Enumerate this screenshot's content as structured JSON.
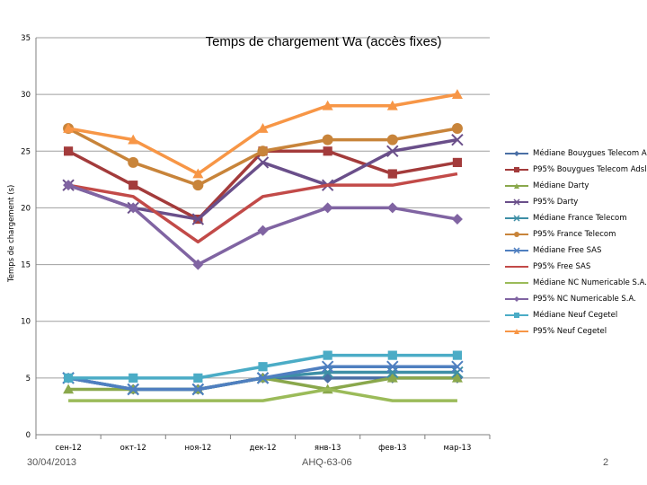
{
  "chart_data": {
    "type": "line",
    "title": "Temps de chargement Wa (accès fixes)",
    "xlabel": "",
    "ylabel": "Temps de chargement (s)",
    "ylim": [
      0,
      35
    ],
    "yticks": [
      0,
      5,
      10,
      15,
      20,
      25,
      30,
      35
    ],
    "categories": [
      "сен-12",
      "окт-12",
      "ноя-12",
      "дек-12",
      "янв-13",
      "фев-13",
      "мар-13"
    ],
    "legend_position": "right",
    "series": [
      {
        "name": "Médiane Bouygues Telecom Adsl",
        "color": "#4a6fa5",
        "marker": "diamond",
        "values": [
          5,
          4,
          4,
          5,
          5,
          5,
          5
        ]
      },
      {
        "name": "P95% Bouygues Telecom Adsl",
        "color": "#a33b3b",
        "marker": "square",
        "values": [
          25,
          22,
          19,
          25,
          25,
          23,
          24
        ]
      },
      {
        "name": "Médiane Darty",
        "color": "#8aa84c",
        "marker": "triangle",
        "values": [
          4,
          4,
          4,
          5,
          4,
          5,
          5
        ]
      },
      {
        "name": "P95% Darty",
        "color": "#6a4f8a",
        "marker": "x",
        "values": [
          22,
          20,
          19,
          24,
          22,
          25,
          26
        ]
      },
      {
        "name": "Médiane France Telecom",
        "color": "#3e8fa6",
        "marker": "x",
        "values": [
          5,
          4,
          4,
          5,
          5.5,
          5.5,
          5.5
        ]
      },
      {
        "name": "P95% France Telecom",
        "color": "#c8843a",
        "marker": "circle",
        "values": [
          27,
          24,
          22,
          25,
          26,
          26,
          27
        ]
      },
      {
        "name": "Médiane Free SAS",
        "color": "#4f7fc0",
        "marker": "x",
        "values": [
          5,
          4,
          4,
          5,
          6,
          6,
          6
        ]
      },
      {
        "name": "P95% Free SAS",
        "color": "#c24a48",
        "marker": "none",
        "values": [
          22,
          21,
          17,
          21,
          22,
          22,
          23
        ]
      },
      {
        "name": "Médiane NC Numericable S.A.",
        "color": "#9bbb59",
        "marker": "none",
        "values": [
          3,
          3,
          3,
          3,
          4,
          3,
          3
        ]
      },
      {
        "name": "P95% NC Numericable S.A.",
        "color": "#8064a2",
        "marker": "diamond",
        "values": [
          22,
          20,
          15,
          18,
          20,
          20,
          19
        ]
      },
      {
        "name": "Médiane Neuf Cegetel",
        "color": "#4bacc6",
        "marker": "square",
        "values": [
          5,
          5,
          5,
          6,
          7,
          7,
          7
        ]
      },
      {
        "name": "P95% Neuf Cegetel",
        "color": "#f79646",
        "marker": "triangle",
        "values": [
          27,
          26,
          23,
          27,
          29,
          29,
          30
        ]
      }
    ]
  },
  "footer": {
    "date": "30/04/2013",
    "code": "AHQ-63-06",
    "page": "2"
  }
}
